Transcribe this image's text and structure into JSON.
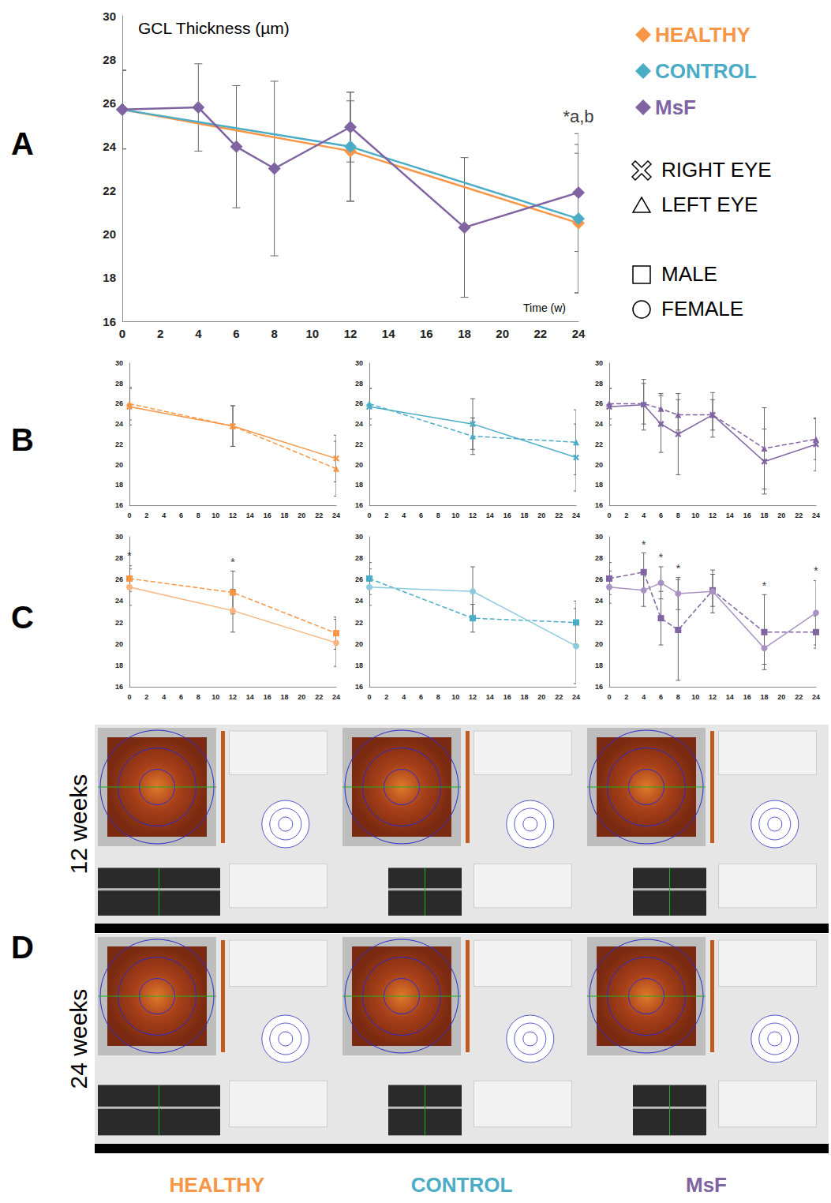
{
  "chart_data": [
    {
      "panel": "A",
      "type": "line",
      "title": "GCL Thickness (µm)",
      "x_label": "Time (w)",
      "xlim": [
        0,
        24
      ],
      "xticks": [
        0,
        2,
        4,
        6,
        8,
        10,
        12,
        14,
        16,
        18,
        20,
        22,
        24
      ],
      "ylim": [
        16,
        30
      ],
      "yticks": [
        16,
        18,
        20,
        22,
        24,
        26,
        28,
        30
      ],
      "grid": false,
      "legend": "right",
      "series": [
        {
          "name": "HEALTHY",
          "color": "#F79646",
          "marker": "diamond",
          "line_style": "solid",
          "x": [
            0,
            12,
            24
          ],
          "values": [
            25.7,
            23.8,
            20.5
          ],
          "errors": [
            1.8,
            2.3,
            3.2
          ]
        },
        {
          "name": "CONTROL",
          "color": "#4BACC6",
          "marker": "diamond",
          "line_style": "solid",
          "x": [
            0,
            12,
            24
          ],
          "values": [
            25.7,
            24.0,
            20.7
          ],
          "errors": [
            1.8,
            2.5,
            3.4
          ]
        },
        {
          "name": "MsF",
          "color": "#8064A2",
          "marker": "diamond",
          "line_style": "solid",
          "x": [
            0,
            4,
            6,
            8,
            12,
            18,
            24
          ],
          "values": [
            25.7,
            25.8,
            24.0,
            23.0,
            24.9,
            20.3,
            21.9
          ],
          "errors": [
            1.8,
            2.0,
            2.8,
            4.0,
            1.6,
            3.2,
            2.7
          ]
        }
      ],
      "annotations": [
        {
          "x": 24,
          "y": 25.4,
          "text": "*a,b"
        }
      ]
    },
    {
      "panel": "B",
      "type": "line",
      "xlim": [
        0,
        24
      ],
      "xticks": [
        0,
        2,
        4,
        6,
        8,
        10,
        12,
        14,
        16,
        18,
        20,
        22,
        24
      ],
      "ylim": [
        16,
        30
      ],
      "yticks": [
        16,
        18,
        20,
        22,
        24,
        26,
        28,
        30
      ],
      "grid": false,
      "series": [
        {
          "name": "RIGHT EYE",
          "color": "#F79646",
          "marker": "cross",
          "line_style": "solid",
          "x": [
            0,
            12,
            24
          ],
          "values": [
            25.7,
            23.8,
            20.6
          ],
          "errors": [
            1.8,
            2.0,
            2.3
          ]
        },
        {
          "name": "LEFT EYE",
          "color": "#F79646",
          "marker": "triangle",
          "line_style": "dashed",
          "x": [
            0,
            12,
            24
          ],
          "values": [
            26.0,
            23.8,
            19.6
          ],
          "errors": [
            1.6,
            2.0,
            2.7
          ]
        }
      ]
    },
    {
      "panel": "B",
      "type": "line",
      "xlim": [
        0,
        24
      ],
      "xticks": [
        0,
        2,
        4,
        6,
        8,
        10,
        12,
        14,
        16,
        18,
        20,
        22,
        24
      ],
      "ylim": [
        16,
        30
      ],
      "yticks": [
        16,
        18,
        20,
        22,
        24,
        26,
        28,
        30
      ],
      "grid": false,
      "series": [
        {
          "name": "RIGHT EYE",
          "color": "#4BACC6",
          "marker": "cross",
          "line_style": "solid",
          "x": [
            0,
            12,
            24
          ],
          "values": [
            25.7,
            24.0,
            20.7
          ],
          "errors": [
            1.8,
            2.5,
            3.3
          ]
        },
        {
          "name": "LEFT EYE",
          "color": "#4BACC6",
          "marker": "triangle",
          "line_style": "dashed",
          "x": [
            0,
            12,
            24
          ],
          "values": [
            26.0,
            22.8,
            22.2
          ],
          "errors": [
            1.5,
            1.8,
            3.2
          ]
        }
      ]
    },
    {
      "panel": "B",
      "type": "line",
      "xlim": [
        0,
        24
      ],
      "xticks": [
        0,
        2,
        4,
        6,
        8,
        10,
        12,
        14,
        16,
        18,
        20,
        22,
        24
      ],
      "ylim": [
        16,
        30
      ],
      "yticks": [
        16,
        18,
        20,
        22,
        24,
        26,
        28,
        30
      ],
      "grid": false,
      "series": [
        {
          "name": "RIGHT EYE",
          "color": "#8064A2",
          "marker": "cross",
          "line_style": "solid",
          "x": [
            0,
            4,
            6,
            8,
            12,
            18,
            24
          ],
          "values": [
            25.7,
            25.9,
            24.0,
            23.0,
            24.9,
            20.3,
            22.0
          ],
          "errors": [
            1.8,
            2.5,
            2.8,
            4.0,
            2.2,
            3.2,
            2.6
          ]
        },
        {
          "name": "LEFT EYE",
          "color": "#8064A2",
          "marker": "triangle",
          "line_style": "dashed",
          "x": [
            0,
            4,
            6,
            8,
            12,
            18,
            24
          ],
          "values": [
            26.0,
            26.0,
            25.5,
            24.9,
            24.9,
            21.6,
            22.5
          ],
          "errors": [
            1.5,
            2.0,
            1.5,
            1.5,
            1.5,
            4.0,
            2.0
          ]
        }
      ]
    },
    {
      "panel": "C",
      "type": "line",
      "xlim": [
        0,
        24
      ],
      "xticks": [
        0,
        2,
        4,
        6,
        8,
        10,
        12,
        14,
        16,
        18,
        20,
        22,
        24
      ],
      "ylim": [
        16,
        30
      ],
      "yticks": [
        16,
        18,
        20,
        22,
        24,
        26,
        28,
        30
      ],
      "grid": false,
      "series": [
        {
          "name": "MALE",
          "color": "#F79646",
          "marker": "square",
          "line_style": "dashed",
          "x": [
            0,
            12,
            24
          ],
          "values": [
            26.1,
            24.8,
            21.0
          ],
          "errors": [
            1.2,
            2.0,
            1.5
          ]
        },
        {
          "name": "FEMALE",
          "color": "#F8B47C",
          "marker": "circle",
          "line_style": "solid",
          "x": [
            0,
            12,
            24
          ],
          "values": [
            25.3,
            23.1,
            20.1
          ],
          "errors": [
            1.7,
            2.0,
            2.2
          ]
        }
      ],
      "annotations": [
        {
          "x": 0,
          "y": 28.3,
          "text": "*"
        },
        {
          "x": 12,
          "y": 27.7,
          "text": "*"
        }
      ]
    },
    {
      "panel": "C",
      "type": "line",
      "xlim": [
        0,
        24
      ],
      "xticks": [
        0,
        2,
        4,
        6,
        8,
        10,
        12,
        14,
        16,
        18,
        20,
        22,
        24
      ],
      "ylim": [
        16,
        30
      ],
      "yticks": [
        16,
        18,
        20,
        22,
        24,
        26,
        28,
        30
      ],
      "grid": false,
      "series": [
        {
          "name": "MALE",
          "color": "#4BACC6",
          "marker": "square",
          "line_style": "dashed",
          "x": [
            0,
            12,
            24
          ],
          "values": [
            26.1,
            22.4,
            22.0
          ],
          "errors": [
            1.5,
            1.3,
            2.0
          ]
        },
        {
          "name": "FEMALE",
          "color": "#8CCBDC",
          "marker": "circle",
          "line_style": "solid",
          "x": [
            0,
            12,
            24
          ],
          "values": [
            25.3,
            24.9,
            19.8
          ],
          "errors": [
            1.7,
            2.3,
            3.5
          ]
        }
      ]
    },
    {
      "panel": "C",
      "type": "line",
      "xlim": [
        0,
        24
      ],
      "xticks": [
        0,
        2,
        4,
        6,
        8,
        10,
        12,
        14,
        16,
        18,
        20,
        22,
        24
      ],
      "ylim": [
        16,
        30
      ],
      "yticks": [
        16,
        18,
        20,
        22,
        24,
        26,
        28,
        30
      ],
      "grid": false,
      "series": [
        {
          "name": "MALE",
          "color": "#8064A2",
          "marker": "square",
          "line_style": "dashed",
          "x": [
            0,
            4,
            6,
            8,
            12,
            18,
            24
          ],
          "values": [
            26.1,
            26.7,
            22.4,
            21.3,
            25.0,
            21.1,
            21.1
          ],
          "errors": [
            1.5,
            1.8,
            2.5,
            4.7,
            1.5,
            3.5,
            1.5
          ]
        },
        {
          "name": "FEMALE",
          "color": "#A892C4",
          "marker": "circle",
          "line_style": "solid",
          "x": [
            0,
            4,
            6,
            8,
            12,
            18,
            24
          ],
          "values": [
            25.3,
            25.0,
            25.7,
            24.7,
            24.9,
            19.6,
            22.9
          ],
          "errors": [
            1.5,
            1.5,
            1.5,
            1.5,
            2.0,
            1.5,
            3.0
          ]
        }
      ],
      "annotations": [
        {
          "x": 4,
          "y": 29.3,
          "text": "*"
        },
        {
          "x": 6,
          "y": 28.1,
          "text": "*"
        },
        {
          "x": 8,
          "y": 27.1,
          "text": "*"
        },
        {
          "x": 18,
          "y": 25.5,
          "text": "*"
        },
        {
          "x": 24,
          "y": 26.9,
          "text": "*"
        }
      ]
    }
  ],
  "symbol_legend": [
    {
      "label": "RIGHT EYE",
      "marker": "cross"
    },
    {
      "label": "LEFT EYE",
      "marker": "triangle"
    },
    {
      "label": "MALE",
      "marker": "square"
    },
    {
      "label": "FEMALE",
      "marker": "circle"
    }
  ],
  "panel_D": {
    "letter": "D",
    "rows": [
      "12 weeks",
      "24 weeks"
    ],
    "columns": [
      {
        "name": "HEALTHY",
        "color": "#F79646"
      },
      {
        "name": "CONTROL",
        "color": "#4BACC6"
      },
      {
        "name": "MsF",
        "color": "#8064A2"
      }
    ]
  }
}
